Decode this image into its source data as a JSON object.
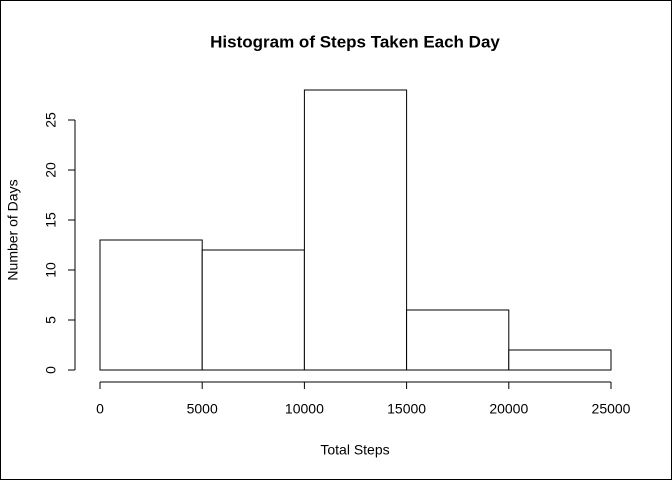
{
  "chart_data": {
    "type": "histogram",
    "title": "Histogram of Steps Taken Each Day",
    "x_label": "Total Steps",
    "y_label": "Number of Days",
    "bins": [
      0,
      5000,
      10000,
      15000,
      20000,
      25000
    ],
    "values": [
      13,
      12,
      28,
      6,
      2
    ],
    "color": "#ffffff",
    "xlim": [
      0,
      25000
    ],
    "xticks": [
      0,
      5000,
      10000,
      15000,
      20000,
      25000
    ],
    "ylim": [
      0,
      28
    ],
    "yticks": [
      0,
      5,
      10,
      15,
      20,
      25
    ]
  }
}
